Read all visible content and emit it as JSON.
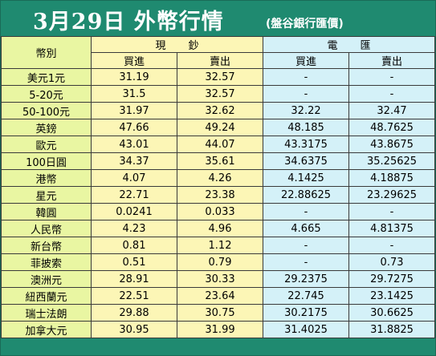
{
  "header": {
    "title": "3月29日 外幣行情",
    "source": "(盤谷銀行匯價)"
  },
  "columns": {
    "currency": "幣別",
    "cash": "現鈔",
    "telegraphic": "電匯",
    "buy": "買進",
    "sell": "賣出"
  },
  "rows": [
    {
      "name": "美元1元",
      "cash_buy": "31.19",
      "cash_sell": "32.57",
      "tt_buy": "-",
      "tt_sell": "-"
    },
    {
      "name": "5-20元",
      "cash_buy": "31.5",
      "cash_sell": "32.57",
      "tt_buy": "-",
      "tt_sell": "-"
    },
    {
      "name": "50-100元",
      "cash_buy": "31.97",
      "cash_sell": "32.62",
      "tt_buy": "32.22",
      "tt_sell": "32.47"
    },
    {
      "name": "英鎊",
      "cash_buy": "47.66",
      "cash_sell": "49.24",
      "tt_buy": "48.185",
      "tt_sell": "48.7625"
    },
    {
      "name": "歐元",
      "cash_buy": "43.01",
      "cash_sell": "44.07",
      "tt_buy": "43.3175",
      "tt_sell": "43.8675"
    },
    {
      "name": "100日圓",
      "cash_buy": "34.37",
      "cash_sell": "35.61",
      "tt_buy": "34.6375",
      "tt_sell": "35.25625"
    },
    {
      "name": "港幣",
      "cash_buy": "4.07",
      "cash_sell": "4.26",
      "tt_buy": "4.1425",
      "tt_sell": "4.18875"
    },
    {
      "name": "星元",
      "cash_buy": "22.71",
      "cash_sell": "23.38",
      "tt_buy": "22.88625",
      "tt_sell": "23.29625"
    },
    {
      "name": "韓圓",
      "cash_buy": "0.0241",
      "cash_sell": "0.033",
      "tt_buy": "-",
      "tt_sell": "-"
    },
    {
      "name": "人民幣",
      "cash_buy": "4.23",
      "cash_sell": "4.96",
      "tt_buy": "4.665",
      "tt_sell": "4.81375"
    },
    {
      "name": "新台幣",
      "cash_buy": "0.81",
      "cash_sell": "1.12",
      "tt_buy": "-",
      "tt_sell": "-"
    },
    {
      "name": "菲披索",
      "cash_buy": "0.51",
      "cash_sell": "0.79",
      "tt_buy": "-",
      "tt_sell": "0.73"
    },
    {
      "name": "澳洲元",
      "cash_buy": "28.91",
      "cash_sell": "30.33",
      "tt_buy": "29.2375",
      "tt_sell": "29.7275"
    },
    {
      "name": "紐西蘭元",
      "cash_buy": "22.51",
      "cash_sell": "23.64",
      "tt_buy": "22.745",
      "tt_sell": "23.1425"
    },
    {
      "name": "瑞士法朗",
      "cash_buy": "29.88",
      "cash_sell": "30.75",
      "tt_buy": "30.2175",
      "tt_sell": "30.6625"
    },
    {
      "name": "加拿大元",
      "cash_buy": "30.95",
      "cash_sell": "31.99",
      "tt_buy": "31.4025",
      "tt_sell": "31.8825"
    }
  ],
  "colors": {
    "header_bg": "#1f8a70",
    "name_col": "#e9f6a2",
    "cash_col": "#fcf6b6",
    "tt_col": "#d4f1f8"
  }
}
